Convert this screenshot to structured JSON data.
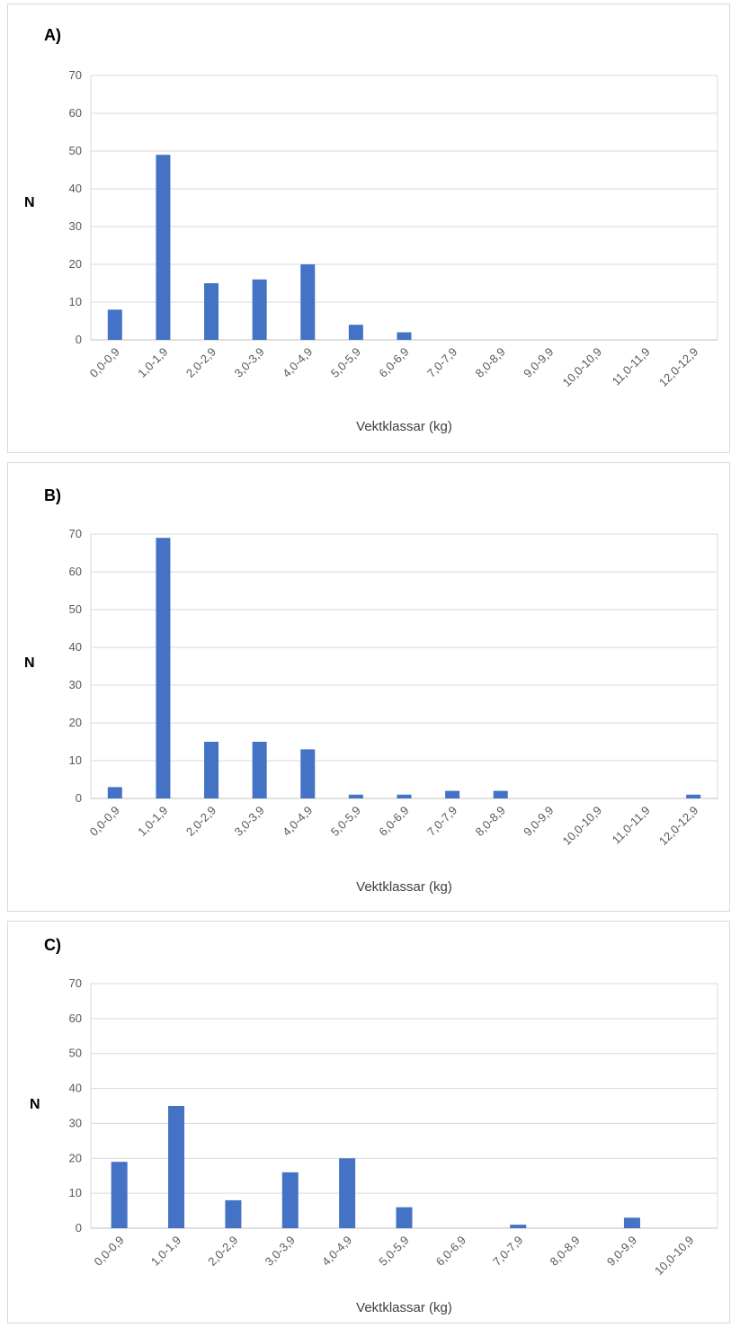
{
  "colors": {
    "bar": "#4472c4",
    "grid": "#d9d9d9",
    "axis": "#bfbfbf"
  },
  "chart_data": [
    {
      "type": "bar",
      "panel_label": "A)",
      "ylabel": "N",
      "xlabel": "Vektklassar (kg)",
      "ylim": [
        0,
        70
      ],
      "yticks": [
        0,
        10,
        20,
        30,
        40,
        50,
        60,
        70
      ],
      "grid": true,
      "categories": [
        "0,0-0,9",
        "1,0-1,9",
        "2,0-2,9",
        "3,0-3,9",
        "4,0-4,9",
        "5,0-5,9",
        "6,0-6,9",
        "7,0-7,9",
        "8,0-8,9",
        "9,0-9,9",
        "10,0-10,9",
        "11,0-11,9",
        "12,0-12,9"
      ],
      "values": [
        8,
        49,
        15,
        16,
        20,
        4,
        2,
        0,
        0,
        0,
        0,
        0,
        0
      ]
    },
    {
      "type": "bar",
      "panel_label": "B)",
      "ylabel": "N",
      "xlabel": "Vektklassar (kg)",
      "ylim": [
        0,
        70
      ],
      "yticks": [
        0,
        10,
        20,
        30,
        40,
        50,
        60,
        70
      ],
      "grid": true,
      "categories": [
        "0,0-0,9",
        "1,0-1,9",
        "2,0-2,9",
        "3,0-3,9",
        "4,0-4,9",
        "5,0-5,9",
        "6,0-6,9",
        "7,0-7,9",
        "8,0-8,9",
        "9,0-9,9",
        "10,0-10,9",
        "11,0-11,9",
        "12,0-12,9"
      ],
      "values": [
        3,
        69,
        15,
        15,
        13,
        1,
        1,
        2,
        2,
        0,
        0,
        0,
        1
      ]
    },
    {
      "type": "bar",
      "panel_label": "C)",
      "ylabel": "N",
      "xlabel": "Vektklassar (kg)",
      "ylim": [
        0,
        70
      ],
      "yticks": [
        0,
        10,
        20,
        30,
        40,
        50,
        60,
        70
      ],
      "grid": true,
      "categories": [
        "0,0-0,9",
        "1,0-1,9",
        "2,0-2,9",
        "3,0-3,9",
        "4,0-4,9",
        "5,0-5,9",
        "6,0-6,9",
        "7,0-7,9",
        "8,0-8,9",
        "9,0-9,9",
        "10,0-10,9"
      ],
      "values": [
        19,
        35,
        8,
        16,
        20,
        6,
        0,
        1,
        0,
        3,
        0
      ]
    }
  ]
}
